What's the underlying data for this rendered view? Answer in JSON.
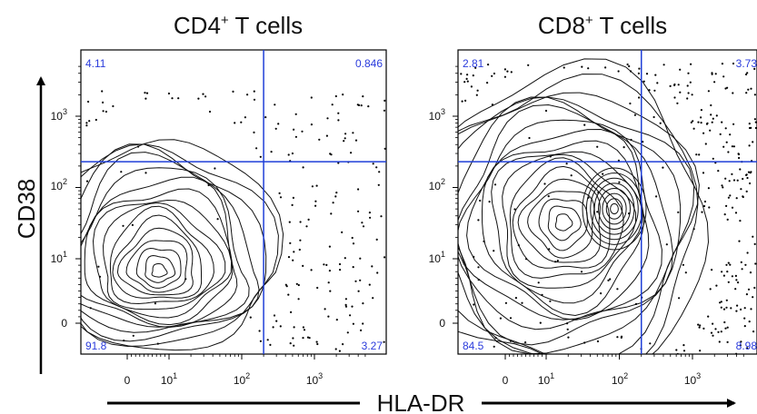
{
  "figure": {
    "x_axis_label": "HLA-DR",
    "y_axis_label": "CD38",
    "gate_color": "#1f3fd8",
    "point_color": "#000000"
  },
  "chart_data": [
    {
      "type": "scatter",
      "title_main": "CD4",
      "title_sup": "+",
      "title_rest": " T cells",
      "x_tick_labels": [
        "0",
        "10",
        "10",
        "10"
      ],
      "x_tick_exponents": [
        "",
        "1",
        "2",
        "3"
      ],
      "y_tick_labels": [
        "0",
        "10",
        "10",
        "10"
      ],
      "y_tick_exponents": [
        "",
        "1",
        "2",
        "3"
      ],
      "gate": {
        "x": 200,
        "y": 230
      },
      "quadrants": {
        "upper_left": "4.11",
        "upper_right": "0.846",
        "lower_left": "91.8",
        "lower_right": "3.27"
      }
    },
    {
      "type": "scatter",
      "title_main": "CD8",
      "title_sup": "+",
      "title_rest": " T cells",
      "x_tick_labels": [
        "0",
        "10",
        "10",
        "10"
      ],
      "x_tick_exponents": [
        "",
        "1",
        "2",
        "3"
      ],
      "y_tick_labels": [
        "0",
        "10",
        "10",
        "10"
      ],
      "y_tick_exponents": [
        "",
        "1",
        "2",
        "3"
      ],
      "gate": {
        "x": 200,
        "y": 230
      },
      "quadrants": {
        "upper_left": "2.81",
        "upper_right": "3.73",
        "lower_left": "84.5",
        "lower_right": "8.98"
      }
    }
  ]
}
